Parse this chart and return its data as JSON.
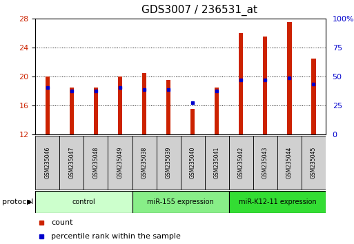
{
  "title": "GDS3007 / 236531_at",
  "categories": [
    "GSM235046",
    "GSM235047",
    "GSM235048",
    "GSM235049",
    "GSM235038",
    "GSM235039",
    "GSM235040",
    "GSM235041",
    "GSM235042",
    "GSM235043",
    "GSM235044",
    "GSM235045"
  ],
  "groups": [
    {
      "label": "control",
      "start": 0,
      "end": 4,
      "color": "#ccffcc"
    },
    {
      "label": "miR-155 expression",
      "start": 4,
      "end": 8,
      "color": "#88ee88"
    },
    {
      "label": "miR-K12-11 expression",
      "start": 8,
      "end": 12,
      "color": "#33dd33"
    }
  ],
  "bar_bottom": 12,
  "red_values": [
    20.0,
    18.5,
    18.5,
    20.0,
    20.5,
    19.5,
    15.5,
    18.5,
    26.0,
    25.5,
    27.5,
    22.5
  ],
  "blue_y": [
    18.5,
    18.0,
    18.0,
    18.5,
    18.2,
    18.2,
    16.4,
    18.0,
    19.5,
    19.5,
    19.8,
    19.0
  ],
  "blue_show": [
    true,
    true,
    true,
    true,
    true,
    true,
    true,
    true,
    true,
    true,
    true,
    true
  ],
  "ylim_left": [
    12,
    28
  ],
  "ylim_right": [
    0,
    100
  ],
  "yticks_left": [
    12,
    16,
    20,
    24,
    28
  ],
  "yticks_right": [
    0,
    25,
    50,
    75,
    100
  ],
  "ytick_labels_right": [
    "0",
    "25",
    "50",
    "75",
    "100%"
  ],
  "bar_color": "#cc2200",
  "blue_color": "#0000cc",
  "bar_width": 0.18,
  "background_color": "#ffffff",
  "plot_bg": "#ffffff",
  "protocol_label": "protocol",
  "legend_count": "count",
  "legend_pct": "percentile rank within the sample",
  "title_fontsize": 11,
  "axis_label_color_left": "#cc2200",
  "axis_label_color_right": "#0000cc",
  "label_box_color": "#d0d0d0",
  "blue_marker_size": 3.5
}
